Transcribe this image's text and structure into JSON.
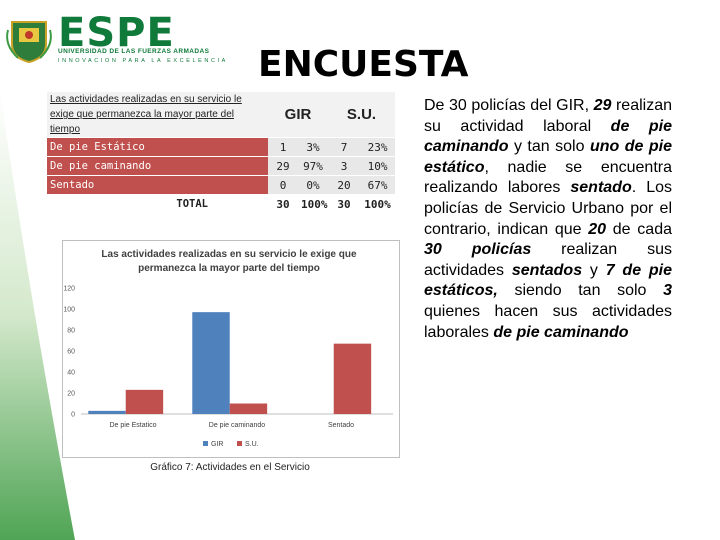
{
  "header": {
    "brand": "ESPE",
    "university": "UNIVERSIDAD DE LAS FUERZAS ARMADAS",
    "motto": "INNOVACION PARA LA EXCELENCIA"
  },
  "title": "ENCUESTA",
  "table": {
    "header": [
      "Las actividades realizadas en su servicio le exige que permanezca la mayor parte del tiempo",
      "GIR",
      "S.U."
    ],
    "rows": [
      [
        "De pie Estático",
        "1",
        "3%",
        "7",
        "23%"
      ],
      [
        "De pie caminando",
        "29",
        "97%",
        "3",
        "10%"
      ],
      [
        "Sentado",
        "0",
        "0%",
        "20",
        "67%"
      ],
      [
        "TOTAL",
        "30",
        "100%",
        "30",
        "100%"
      ]
    ]
  },
  "chart_data": {
    "type": "bar",
    "title": "Las actividades realizadas en su servicio le exige que permanezca la mayor parte del tiempo",
    "caption": "Gráfico 7: Actividades en el Servicio",
    "categories": [
      "De pie Estatico",
      "De pie caminando",
      "Sentado"
    ],
    "series": [
      {
        "name": "GIR",
        "color": "#4f81bd",
        "values": [
          3,
          97,
          0
        ]
      },
      {
        "name": "S.U.",
        "color": "#c0504d",
        "values": [
          23,
          10,
          67
        ]
      }
    ],
    "ylim": [
      0,
      120
    ],
    "yticks": [
      0,
      20,
      40,
      60,
      80,
      100,
      120
    ],
    "grid": false,
    "legend": "bottom"
  },
  "body": {
    "segments": [
      "De 30 policías del GIR, ",
      "29",
      " realizan su actividad laboral ",
      "de pie caminando",
      " y tan solo ",
      "uno de pie estático",
      ", nadie se encuentra realizando labores ",
      "sentado",
      ". Los policías de Servicio Urbano por el contrario, indican que ",
      "20",
      " de cada ",
      "30 policías",
      " realizan sus actividades ",
      "sentados",
      " y ",
      "7 de pie estáticos,",
      " siendo tan solo ",
      "3",
      " quienes hacen sus actividades laborales ",
      "de pie caminando"
    ]
  }
}
